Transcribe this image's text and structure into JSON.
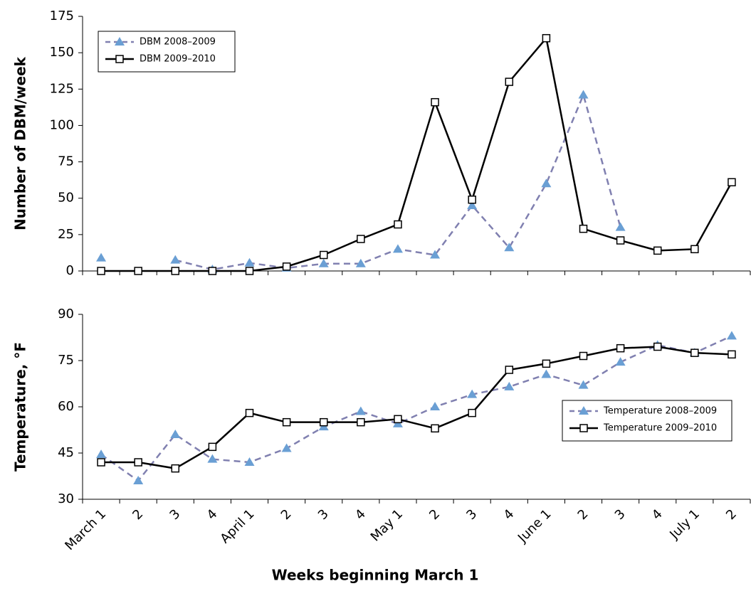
{
  "chart_data": [
    {
      "type": "line",
      "ylabel": "Number of DBM/week",
      "ylim": [
        0,
        175
      ],
      "yticks": [
        0,
        25,
        50,
        75,
        100,
        125,
        150,
        175
      ],
      "legend": "upper left",
      "series": [
        {
          "name": "DBM 2008–2009",
          "color": "#8080b0",
          "marker_color": "#6a9fd4",
          "marker": "triangle",
          "dashed": true,
          "values": [
            9,
            null,
            7.5,
            1,
            5.5,
            2,
            5,
            5,
            15,
            11,
            45,
            16,
            60,
            121,
            30,
            null,
            null,
            null
          ]
        },
        {
          "name": "DBM 2009–2010",
          "color": "#000000",
          "marker_color": "#ffffff",
          "marker": "square",
          "dashed": false,
          "values": [
            0,
            0,
            0,
            0,
            0,
            3,
            11,
            22,
            32,
            116,
            49,
            130,
            160,
            29,
            21,
            14,
            15,
            61
          ]
        }
      ]
    },
    {
      "type": "line",
      "ylabel": "Temperature, °F",
      "xlabel": "Weeks beginning March 1",
      "categories": [
        "March 1",
        "2",
        "3",
        "4",
        "April 1",
        "2",
        "3",
        "4",
        "May 1",
        "2",
        "3",
        "4",
        "June 1",
        "2",
        "3",
        "4",
        "July 1",
        "2"
      ],
      "ylim": [
        30,
        90
      ],
      "yticks": [
        30,
        45,
        60,
        75,
        90
      ],
      "legend": "lower right",
      "series": [
        {
          "name": "Temperature 2008–2009",
          "color": "#8080b0",
          "marker_color": "#6a9fd4",
          "marker": "triangle",
          "dashed": true,
          "values": [
            44.5,
            36,
            51,
            43,
            42,
            46.5,
            53.5,
            58.5,
            54.5,
            60,
            64,
            66.5,
            70.5,
            67,
            74.5,
            80,
            77.5,
            83
          ]
        },
        {
          "name": "Temperature 2009–2010",
          "color": "#000000",
          "marker_color": "#ffffff",
          "marker": "square",
          "dashed": false,
          "values": [
            42,
            42,
            40,
            47,
            58,
            55,
            55,
            55,
            56,
            53,
            58,
            72,
            74,
            76.5,
            79,
            79.5,
            77.5,
            77
          ]
        }
      ]
    }
  ]
}
